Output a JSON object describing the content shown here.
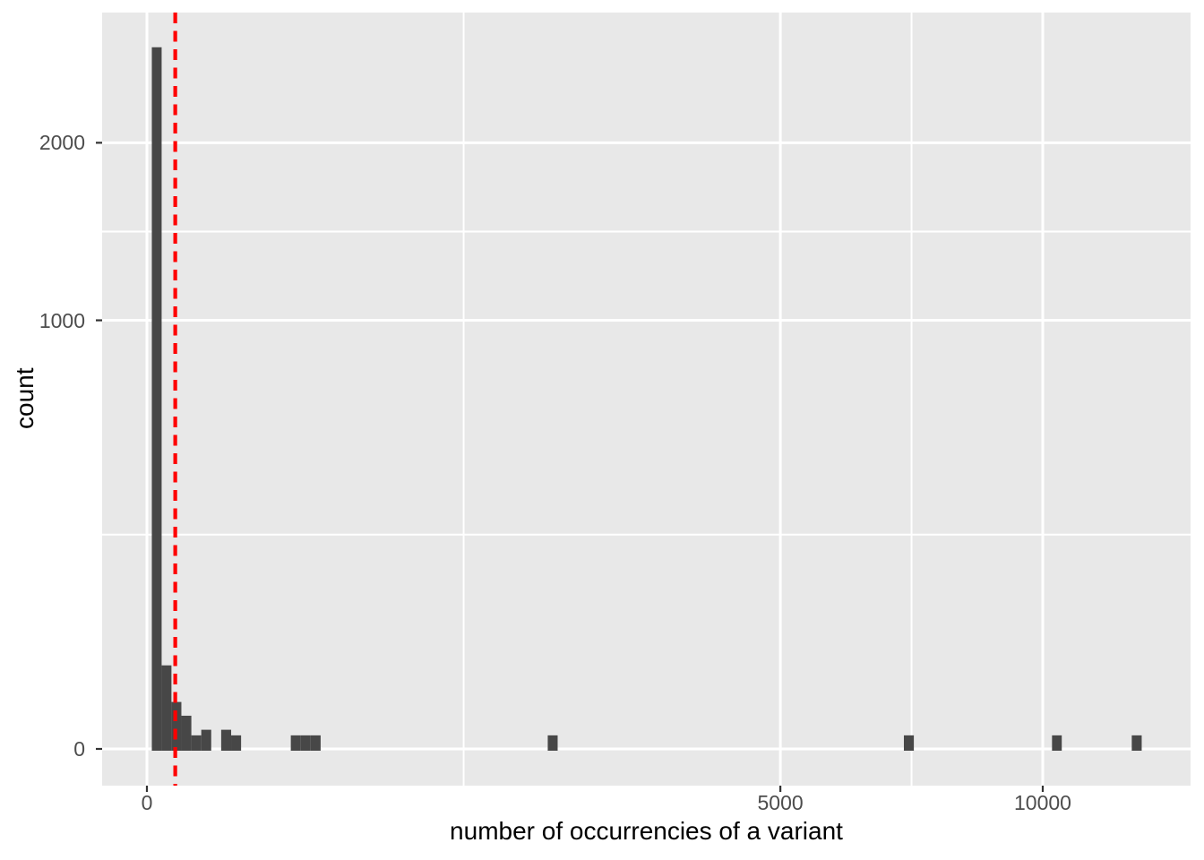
{
  "chart_data": {
    "type": "histogram",
    "title": "",
    "xlabel": "number of occurrencies of a variant",
    "ylabel": "count",
    "x_scale": "sqrt",
    "y_scale": "sqrt",
    "x_limits": [
      0,
      13550
    ],
    "y_limits": [
      0,
      2950
    ],
    "grid": {
      "major": true,
      "minor": true,
      "color": "#ffffff"
    },
    "legend_position": "none",
    "x_ticks": [
      {
        "value": 0,
        "label": "0"
      },
      {
        "value": 5000,
        "label": "5000"
      },
      {
        "value": 10000,
        "label": "10000"
      }
    ],
    "y_ticks": [
      {
        "value": 0,
        "label": "0"
      },
      {
        "value": 1000,
        "label": "1000"
      },
      {
        "value": 2000,
        "label": "2000"
      }
    ],
    "bins": [
      {
        "from": 0.3,
        "to": 2.7,
        "count": 2680
      },
      {
        "from": 2.7,
        "to": 7.5,
        "count": 38
      },
      {
        "from": 7.5,
        "to": 14.8,
        "count": 12
      },
      {
        "from": 14.8,
        "to": 24.6,
        "count": 6
      },
      {
        "from": 24.6,
        "to": 36.8,
        "count": 1
      },
      {
        "from": 36.8,
        "to": 51.5,
        "count": 2
      },
      {
        "from": 68.7,
        "to": 88.4,
        "count": 2
      },
      {
        "from": 88.4,
        "to": 110.5,
        "count": 1
      },
      {
        "from": 258,
        "to": 295,
        "count": 1
      },
      {
        "from": 295,
        "to": 334,
        "count": 1
      },
      {
        "from": 334,
        "to": 376,
        "count": 1
      },
      {
        "from": 2002,
        "to": 2102,
        "count": 1
      },
      {
        "from": 7140,
        "to": 7329,
        "count": 1
      },
      {
        "from": 10208,
        "to": 10429,
        "count": 1
      },
      {
        "from": 12086,
        "to": 12331,
        "count": 1
      }
    ],
    "reference_line": {
      "orientation": "vertical",
      "x": 10,
      "linetype": "dashed",
      "color": "#ff0000"
    }
  },
  "colors": {
    "figure_background": "#ffffff",
    "panel_background": "#e8e8e8",
    "grid_line": "#ffffff",
    "bar_fill": "#474747",
    "tick_mark": "#333333",
    "tick_label": "#4d4d4d",
    "axis_title": "#000000",
    "reference_line": "#ff0000"
  }
}
